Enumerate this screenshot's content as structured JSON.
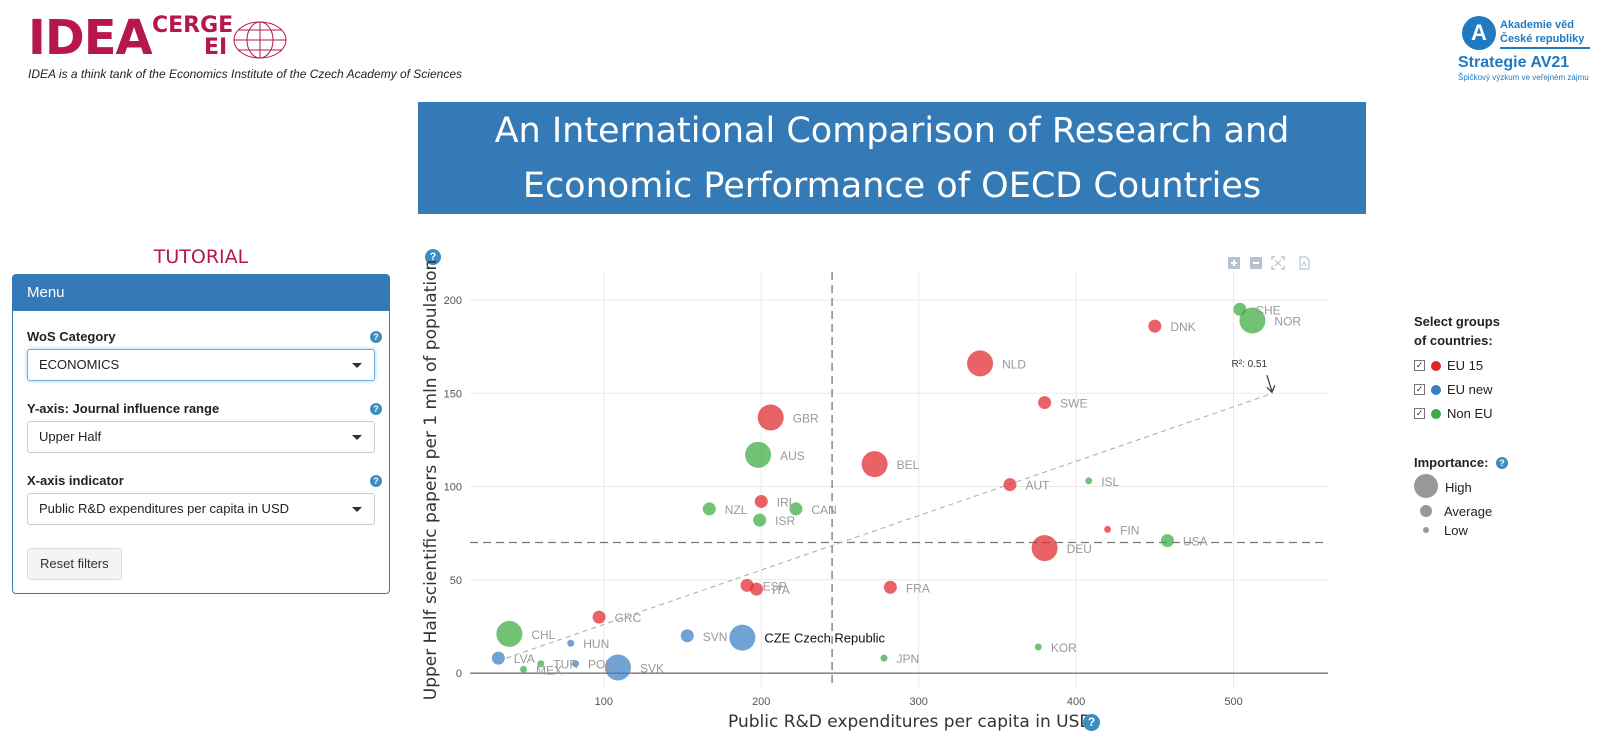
{
  "header": {
    "idea_logo_text": "IDEA",
    "cerge_text": "CERGE",
    "ei_text": "EI",
    "tagline": "IDEA is a think tank of the Economics Institute of the Czech Academy of Sciences",
    "av_logo": {
      "symbol": "A",
      "name_line1": "Akademie věd",
      "name_line2": "České republiky",
      "strategy": "Strategie AV21",
      "strategy_sub": "Špičkový výzkum ve veřejném zájmu"
    },
    "title_line1": "An International Comparison of Research and",
    "title_line2": "Economic Performance of OECD Countries"
  },
  "sidebar": {
    "tutorial_label": "TUTORIAL",
    "menu_title": "Menu",
    "wos_label": "WoS Category",
    "wos_value": "ECONOMICS",
    "y_label": "Y-axis: Journal influence range",
    "y_value": "Upper Half",
    "x_label": "X-axis indicator",
    "x_value": "Public R&D expenditures per capita in USD",
    "reset_label": "Reset filters",
    "help_glyph": "?"
  },
  "colors": {
    "eu15": "#e0262b",
    "eu_new": "#3a7fc1",
    "non_eu": "#3aab3f",
    "accent": "#337ab7",
    "brand": "#b5174e"
  },
  "legend": {
    "title_line1": "Select groups",
    "title_line2": "of countries:",
    "groups": [
      {
        "name": "EU 15",
        "color_key": "eu15",
        "checked": true
      },
      {
        "name": "EU new",
        "color_key": "eu_new",
        "checked": true
      },
      {
        "name": "Non EU",
        "color_key": "non_eu",
        "checked": true
      }
    ],
    "importance_title": "Importance:",
    "importance_levels": [
      "High",
      "Average",
      "Low"
    ]
  },
  "modebar": {
    "icons": [
      "zoom-in-icon",
      "zoom-out-icon",
      "autoscale-icon",
      "pdf-download-icon"
    ]
  },
  "chart_data": {
    "type": "scatter",
    "xlabel": "Public R&D expenditures per capita in USD",
    "ylabel": "Upper Half scientific papers per 1 mln of population",
    "xlim": [
      15,
      560
    ],
    "ylim": [
      -8,
      215
    ],
    "x_ticks": [
      100,
      200,
      300,
      400,
      500
    ],
    "y_ticks": [
      0,
      50,
      100,
      150,
      200
    ],
    "grid": true,
    "mean_x": 245,
    "mean_y": 70,
    "trendline": {
      "from": [
        38,
        8
      ],
      "to": [
        525,
        150
      ],
      "label": "R²: 0.51",
      "label_x": 510,
      "label_y": 164
    },
    "legend_position": "right",
    "highlighted": {
      "code": "CZE",
      "label": "CZE Czech Republic"
    },
    "points": [
      {
        "code": "CHE",
        "x": 504,
        "y": 195,
        "group": "non_eu",
        "importance": "average"
      },
      {
        "code": "NOR",
        "x": 512,
        "y": 189,
        "group": "non_eu",
        "importance": "high"
      },
      {
        "code": "DNK",
        "x": 450,
        "y": 186,
        "group": "eu15",
        "importance": "average"
      },
      {
        "code": "NLD",
        "x": 339,
        "y": 166,
        "group": "eu15",
        "importance": "high"
      },
      {
        "code": "SWE",
        "x": 380,
        "y": 145,
        "group": "eu15",
        "importance": "average"
      },
      {
        "code": "GBR",
        "x": 206,
        "y": 137,
        "group": "eu15",
        "importance": "high"
      },
      {
        "code": "AUS",
        "x": 198,
        "y": 117,
        "group": "non_eu",
        "importance": "high"
      },
      {
        "code": "BEL",
        "x": 272,
        "y": 112,
        "group": "eu15",
        "importance": "high"
      },
      {
        "code": "AUT",
        "x": 358,
        "y": 101,
        "group": "eu15",
        "importance": "average"
      },
      {
        "code": "ISL",
        "x": 408,
        "y": 103,
        "group": "non_eu",
        "importance": "low"
      },
      {
        "code": "IRL",
        "x": 200,
        "y": 92,
        "group": "eu15",
        "importance": "average"
      },
      {
        "code": "NZL",
        "x": 167,
        "y": 88,
        "group": "non_eu",
        "importance": "average"
      },
      {
        "code": "CAN",
        "x": 222,
        "y": 88,
        "group": "non_eu",
        "importance": "average"
      },
      {
        "code": "ISR",
        "x": 199,
        "y": 82,
        "group": "non_eu",
        "importance": "average"
      },
      {
        "code": "FIN",
        "x": 420,
        "y": 77,
        "group": "eu15",
        "importance": "low"
      },
      {
        "code": "USA",
        "x": 458,
        "y": 71,
        "group": "non_eu",
        "importance": "average"
      },
      {
        "code": "DEU",
        "x": 380,
        "y": 67,
        "group": "eu15",
        "importance": "high"
      },
      {
        "code": "ESP",
        "x": 191,
        "y": 47,
        "group": "eu15",
        "importance": "average"
      },
      {
        "code": "ITA",
        "x": 197,
        "y": 45,
        "group": "eu15",
        "importance": "average"
      },
      {
        "code": "FRA",
        "x": 282,
        "y": 46,
        "group": "eu15",
        "importance": "average"
      },
      {
        "code": "GRC",
        "x": 97,
        "y": 30,
        "group": "eu15",
        "importance": "average"
      },
      {
        "code": "CHL",
        "x": 40,
        "y": 21,
        "group": "non_eu",
        "importance": "high"
      },
      {
        "code": "SVN",
        "x": 153,
        "y": 20,
        "group": "eu_new",
        "importance": "average"
      },
      {
        "code": "CZE",
        "x": 188,
        "y": 19,
        "group": "eu_new",
        "importance": "high"
      },
      {
        "code": "HUN",
        "x": 79,
        "y": 16,
        "group": "eu_new",
        "importance": "low"
      },
      {
        "code": "KOR",
        "x": 376,
        "y": 14,
        "group": "non_eu",
        "importance": "low"
      },
      {
        "code": "LVA",
        "x": 33,
        "y": 8,
        "group": "eu_new",
        "importance": "average"
      },
      {
        "code": "JPN",
        "x": 278,
        "y": 8,
        "group": "non_eu",
        "importance": "low"
      },
      {
        "code": "TUR",
        "x": 60,
        "y": 5,
        "group": "non_eu",
        "importance": "low"
      },
      {
        "code": "POL",
        "x": 82,
        "y": 5,
        "group": "eu_new",
        "importance": "low"
      },
      {
        "code": "SVK",
        "x": 109,
        "y": 3,
        "group": "eu_new",
        "importance": "high"
      },
      {
        "code": "MEX",
        "x": 49,
        "y": 2,
        "group": "non_eu",
        "importance": "low"
      }
    ]
  }
}
